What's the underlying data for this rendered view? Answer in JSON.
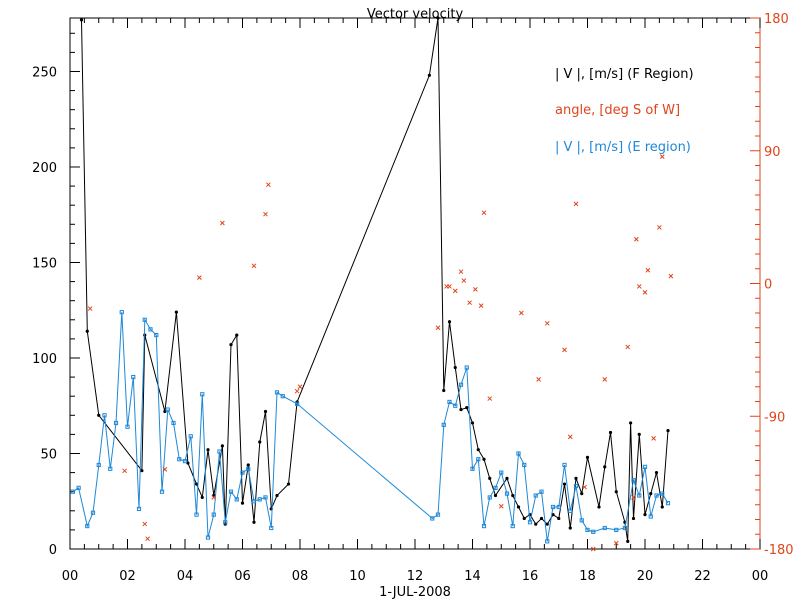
{
  "chart_data": {
    "type": "line",
    "title": "Vector velocity",
    "xlabel": "1-JUL-2008",
    "x_tick_labels": [
      "00",
      "02",
      "04",
      "06",
      "08",
      "10",
      "12",
      "14",
      "16",
      "18",
      "20",
      "22",
      "00"
    ],
    "xlim": [
      0,
      24
    ],
    "ylim_left": [
      0,
      278
    ],
    "y_ticks_left": [
      0,
      50,
      100,
      150,
      200,
      250
    ],
    "ylim_right": [
      -180,
      180
    ],
    "y_ticks_right": [
      -180,
      -90,
      0,
      90,
      180
    ],
    "right_axis_color": "#e0441a",
    "legend": [
      {
        "label": "| V |, [m/s] (F Region)",
        "color": "#000000"
      },
      {
        "label": "angle, [deg S of W]",
        "color": "#e0441a"
      },
      {
        "label": "| V |, [m/s] (E region)",
        "color": "#1e88d8"
      }
    ],
    "series": [
      {
        "name": "| V |, [m/s] (F Region)",
        "axis": "left",
        "color": "#000000",
        "marker": "dot",
        "x": [
          0.4,
          0.6,
          1.0,
          2.5,
          2.6,
          3.3,
          3.7,
          4.1,
          4.4,
          4.6,
          4.8,
          5.0,
          5.3,
          5.4,
          5.6,
          5.8,
          6.0,
          6.2,
          6.4,
          6.6,
          6.8,
          7.0,
          7.2,
          7.6,
          7.9,
          12.5,
          12.8,
          13.0,
          13.2,
          13.4,
          13.6,
          13.8,
          14.0,
          14.2,
          14.4,
          14.6,
          14.8,
          15.2,
          15.4,
          15.6,
          15.8,
          16.0,
          16.2,
          16.4,
          16.6,
          16.8,
          17.0,
          17.2,
          17.4,
          17.6,
          17.8,
          18.0,
          18.4,
          18.6,
          18.8,
          19.0,
          19.3,
          19.4,
          19.5,
          19.6,
          19.8,
          20.0,
          20.2,
          20.4,
          20.6,
          20.8
        ],
        "values": [
          277,
          114,
          70,
          41,
          112,
          72,
          124,
          45,
          34,
          27,
          52,
          28,
          54,
          13,
          107,
          112,
          24,
          44,
          14,
          56,
          72,
          21,
          28,
          34,
          77,
          248,
          278,
          83,
          119,
          95,
          73,
          74,
          66,
          52,
          47,
          37,
          28,
          37,
          28,
          22,
          16,
          18,
          13,
          16,
          13,
          18,
          16,
          34,
          11,
          37,
          29,
          48,
          22,
          43,
          61,
          30,
          14,
          4,
          66,
          16,
          60,
          18,
          29,
          40,
          22,
          62
        ]
      },
      {
        "name": "| V |, [m/s] (E region)",
        "axis": "left",
        "color": "#1e88d8",
        "marker": "square",
        "x": [
          0.1,
          0.3,
          0.6,
          0.8,
          1.0,
          1.2,
          1.4,
          1.6,
          1.8,
          2.0,
          2.2,
          2.4,
          2.6,
          2.8,
          3.0,
          3.2,
          3.4,
          3.6,
          3.8,
          4.0,
          4.2,
          4.4,
          4.6,
          4.8,
          5.0,
          5.2,
          5.4,
          5.6,
          5.8,
          6.0,
          6.2,
          6.4,
          6.6,
          6.8,
          7.0,
          7.2,
          7.4,
          7.9,
          12.6,
          12.8,
          13.0,
          13.2,
          13.4,
          13.6,
          13.8,
          14.0,
          14.2,
          14.4,
          14.6,
          14.8,
          15.0,
          15.2,
          15.4,
          15.6,
          15.8,
          16.0,
          16.2,
          16.4,
          16.6,
          16.8,
          17.0,
          17.2,
          17.4,
          17.6,
          17.8,
          18.0,
          18.2,
          18.6,
          19.0,
          19.3,
          19.6,
          19.8,
          20.0,
          20.2,
          20.4,
          20.6,
          20.8
        ],
        "values": [
          30,
          32,
          12,
          19,
          44,
          70,
          42,
          66,
          124,
          64,
          90,
          21,
          120,
          115,
          112,
          30,
          73,
          66,
          47,
          46,
          59,
          18,
          81,
          6,
          18,
          51,
          14,
          30,
          26,
          40,
          42,
          25,
          26,
          27,
          11,
          82,
          80,
          76,
          16,
          18,
          65,
          77,
          75,
          86,
          95,
          42,
          47,
          12,
          27,
          32,
          40,
          29,
          12,
          50,
          44,
          14,
          28,
          30,
          4,
          22,
          22,
          44,
          20,
          33,
          15,
          10,
          9,
          11,
          10,
          11,
          36,
          28,
          43,
          17,
          28,
          29,
          24
        ]
      },
      {
        "name": "angle, [deg S of W]",
        "axis": "right",
        "color": "#e0441a",
        "marker": "x",
        "x": [
          0.7,
          1.9,
          2.6,
          2.7,
          3.3,
          4.5,
          5.0,
          5.3,
          6.4,
          6.8,
          6.9,
          7.9,
          8.0,
          12.8,
          13.1,
          13.2,
          13.4,
          13.6,
          13.7,
          13.9,
          14.1,
          14.3,
          14.4,
          14.6,
          15.0,
          15.7,
          16.3,
          16.6,
          17.2,
          17.4,
          17.6,
          17.9,
          18.2,
          18.6,
          19.0,
          19.4,
          19.6,
          19.7,
          19.8,
          20.0,
          20.1,
          20.3,
          20.5,
          20.6,
          20.9
        ],
        "values": [
          -17,
          -127,
          -163,
          -173,
          -126,
          4,
          -145,
          41,
          12,
          47,
          67,
          -73,
          -70,
          -30,
          -2,
          -2,
          -5,
          8,
          2,
          -13,
          -4,
          -15,
          48,
          -78,
          -151,
          -20,
          -65,
          -27,
          -45,
          -104,
          54,
          -138,
          -180,
          -65,
          -176,
          -43,
          -145,
          30,
          -2,
          -6,
          9,
          -105,
          38,
          86,
          5
        ]
      }
    ]
  }
}
